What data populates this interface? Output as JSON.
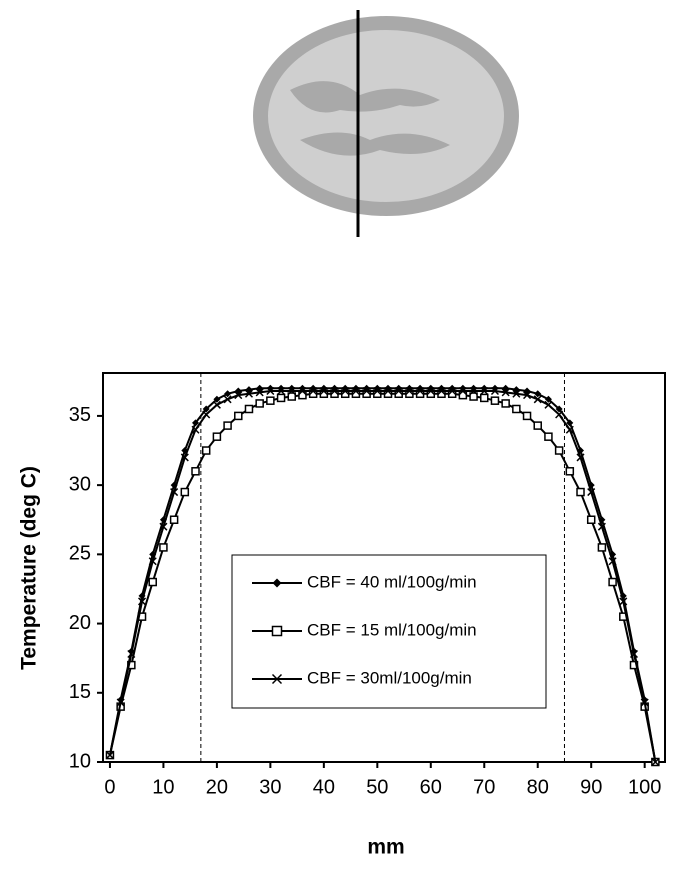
{
  "chart_data": {
    "type": "line",
    "x": [
      0,
      2,
      4,
      6,
      8,
      10,
      12,
      14,
      16,
      18,
      20,
      22,
      24,
      26,
      28,
      30,
      32,
      34,
      36,
      38,
      40,
      42,
      44,
      46,
      48,
      50,
      52,
      54,
      56,
      58,
      60,
      62,
      64,
      66,
      68,
      70,
      72,
      74,
      76,
      78,
      80,
      82,
      84,
      86,
      88,
      90,
      92,
      94,
      96,
      98,
      100,
      102
    ],
    "series": [
      {
        "name": "CBF = 40 ml/100g/min",
        "color": "#000000",
        "marker": "diamond",
        "values": [
          10.5,
          14.5,
          18,
          22,
          25,
          27.5,
          30,
          32.5,
          34.5,
          35.5,
          36.2,
          36.6,
          36.8,
          36.9,
          37,
          37,
          37,
          37,
          37,
          37,
          37,
          37,
          37,
          37,
          37,
          37,
          37,
          37,
          37,
          37,
          37,
          37,
          37,
          37,
          37,
          37,
          37,
          37,
          36.9,
          36.8,
          36.6,
          36.2,
          35.5,
          34.5,
          32.5,
          30,
          27.5,
          25,
          22,
          18,
          14.5,
          10
        ]
      },
      {
        "name": "CBF = 15 ml/100g/min",
        "color": "#000000",
        "marker": "square",
        "values": [
          10.5,
          14,
          17,
          20.5,
          23,
          25.5,
          27.5,
          29.5,
          31,
          32.5,
          33.5,
          34.3,
          35,
          35.5,
          35.9,
          36.1,
          36.3,
          36.4,
          36.5,
          36.6,
          36.6,
          36.6,
          36.6,
          36.6,
          36.6,
          36.6,
          36.6,
          36.6,
          36.6,
          36.6,
          36.6,
          36.6,
          36.6,
          36.5,
          36.4,
          36.3,
          36.1,
          35.9,
          35.5,
          35,
          34.3,
          33.5,
          32.5,
          31,
          29.5,
          27.5,
          25.5,
          23,
          20.5,
          17,
          14,
          10
        ]
      },
      {
        "name": "CBF = 30ml/100g/min",
        "color": "#000000",
        "marker": "x",
        "values": [
          10.5,
          14.3,
          17.8,
          21.6,
          24.5,
          27,
          29.5,
          32,
          34,
          35.1,
          35.8,
          36.2,
          36.5,
          36.6,
          36.7,
          36.8,
          36.8,
          36.8,
          36.8,
          36.8,
          36.8,
          36.8,
          36.8,
          36.8,
          36.8,
          36.8,
          36.8,
          36.8,
          36.8,
          36.8,
          36.8,
          36.8,
          36.8,
          36.8,
          36.8,
          36.8,
          36.8,
          36.7,
          36.6,
          36.5,
          36.2,
          35.8,
          35.1,
          34,
          32,
          29.5,
          27,
          24.5,
          21.6,
          17.8,
          14.3,
          10
        ]
      }
    ],
    "xlabel": "mm",
    "ylabel": "Temperature (deg C)",
    "xlim": [
      -1.3,
      103.8
    ],
    "ylim": [
      10,
      38.1
    ],
    "xticks": [
      0,
      10,
      20,
      30,
      40,
      50,
      60,
      70,
      80,
      90,
      100
    ],
    "yticks": [
      10,
      15,
      20,
      25,
      30,
      35
    ],
    "vlines": [
      17,
      85
    ],
    "legend": "center"
  }
}
